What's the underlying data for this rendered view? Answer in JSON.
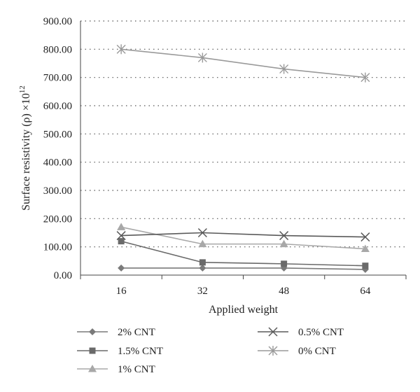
{
  "chart_data": {
    "type": "line",
    "title": "",
    "xlabel": "Applied weight",
    "ylabel": "Surface resistivity (ρ) ×10",
    "ylabel_superscript": "12",
    "categories": [
      "16",
      "32",
      "48",
      "64"
    ],
    "y_tick_labels": [
      "0.00",
      "100.00",
      "200.00",
      "300.00",
      "400.00",
      "500.00",
      "600.00",
      "700.00",
      "800.00",
      "900.00"
    ],
    "ylim": [
      0,
      900
    ],
    "y_tick_step": 100,
    "grid": "horizontal-dotted",
    "legend_position": "bottom",
    "series": [
      {
        "name": "2% CNT",
        "values": [
          25,
          25,
          25,
          20
        ],
        "color": "#7a7a7a",
        "marker": "diamond"
      },
      {
        "name": "1.5% CNT",
        "values": [
          120,
          45,
          40,
          33
        ],
        "color": "#6a6a6a",
        "marker": "square"
      },
      {
        "name": "1% CNT",
        "values": [
          170,
          110,
          110,
          93
        ],
        "color": "#a8a8a8",
        "marker": "triangle"
      },
      {
        "name": "0.5% CNT",
        "values": [
          140,
          150,
          140,
          135
        ],
        "color": "#5a5a5a",
        "marker": "x"
      },
      {
        "name": "0% CNT",
        "values": [
          800,
          770,
          730,
          700
        ],
        "color": "#9a9a9a",
        "marker": "star"
      }
    ]
  }
}
